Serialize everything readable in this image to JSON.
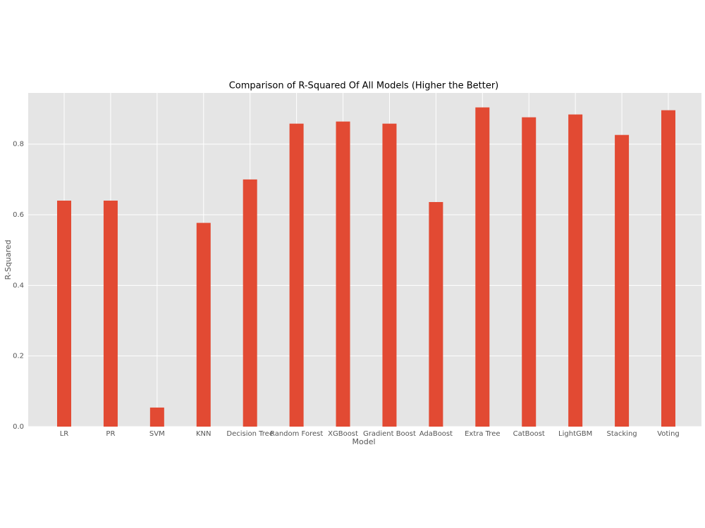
{
  "chart_data": {
    "type": "bar",
    "title": "Comparison of R-Squared Of All Models (Higher the Better)",
    "x_label": "Model",
    "y_label": "R-Squared",
    "categories": [
      "LR",
      "PR",
      "SVM",
      "KNN",
      "Decision Tree",
      "Random Forest",
      "XGBoost",
      "Gradient Boost",
      "AdaBoost",
      "Extra Tree",
      "CatBoost",
      "LightGBM",
      "Stacking",
      "Voting"
    ],
    "values": [
      0.64,
      0.64,
      0.054,
      0.577,
      0.7,
      0.858,
      0.864,
      0.858,
      0.636,
      0.904,
      0.876,
      0.884,
      0.826,
      0.896
    ],
    "color": "#e24a33",
    "ylim": [
      0,
      0.945
    ],
    "yticks": [
      {
        "value": 0,
        "label": "0.0"
      },
      0.2,
      0.4,
      0.6,
      0.8
    ],
    "grid": true
  }
}
